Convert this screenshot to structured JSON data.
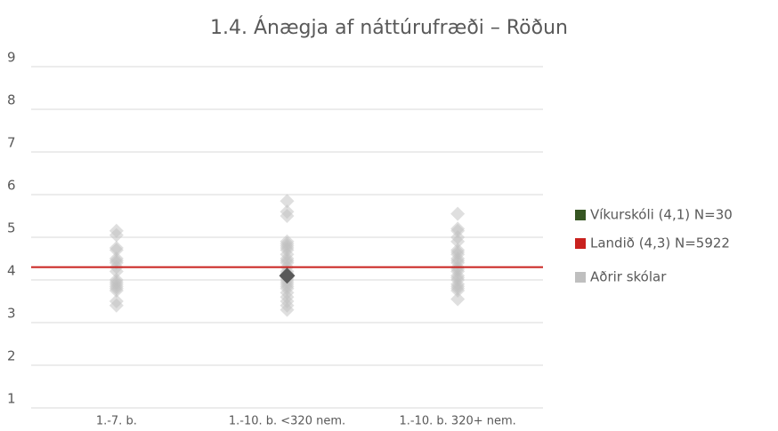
{
  "chart_data": {
    "type": "strip",
    "title": "1.4. Ánægja af náttúrufræði – Röðun",
    "categories": [
      "1.-7. b.",
      "1.-10. b. <320 nem.",
      "1.-10. b. 320+ nem."
    ],
    "ylim": [
      1,
      9
    ],
    "yticks": [
      1,
      2,
      3,
      4,
      5,
      6,
      7,
      8,
      9
    ],
    "grid": true,
    "legend": "right",
    "series": [
      {
        "name": "Víkurskóli (4,1) N=30",
        "color": "#375623",
        "marker_color": "#595959",
        "type": "point",
        "values": [
          null,
          4.1,
          null
        ]
      },
      {
        "name": "Landið (4,3) N=5922",
        "color": "#c9211e",
        "type": "hline",
        "value": 4.3
      },
      {
        "name": "Aðrir skólar",
        "color": "#bfbfbf",
        "type": "points",
        "values": [
          [
            5.15,
            5.05,
            4.75,
            4.7,
            4.5,
            4.45,
            4.4,
            4.3,
            4.2,
            4.0,
            3.95,
            3.9,
            3.85,
            3.8,
            3.75,
            3.5,
            3.4
          ],
          [
            5.85,
            5.6,
            5.5,
            4.9,
            4.85,
            4.8,
            4.75,
            4.7,
            4.6,
            4.5,
            4.45,
            4.4,
            4.3,
            4.2,
            4.15,
            4.1,
            4.05,
            4.0,
            3.95,
            3.9,
            3.85,
            3.8,
            3.7,
            3.6,
            3.5,
            3.4,
            3.3
          ],
          [
            5.55,
            5.2,
            5.15,
            5.0,
            4.9,
            4.7,
            4.65,
            4.6,
            4.5,
            4.45,
            4.4,
            4.3,
            4.25,
            4.2,
            4.1,
            4.05,
            4.0,
            3.9,
            3.85,
            3.8,
            3.75,
            3.55
          ]
        ]
      }
    ]
  }
}
